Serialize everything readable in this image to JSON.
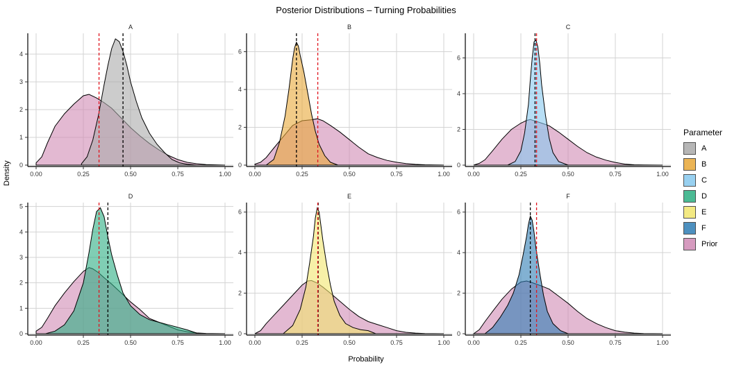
{
  "chart_data": {
    "type": "area",
    "title": "Posterior Distributions – Turning Probabilities",
    "xlabel": "Probability",
    "ylabel": "Density",
    "legend": {
      "title": "Parameter",
      "placement": "right",
      "entries": [
        {
          "name": "A",
          "color": "#aaaaaa"
        },
        {
          "name": "B",
          "color": "#e8a838"
        },
        {
          "name": "C",
          "color": "#87c8ee"
        },
        {
          "name": "D",
          "color": "#2cae82"
        },
        {
          "name": "E",
          "color": "#f2e66e"
        },
        {
          "name": "F",
          "color": "#2f7db4"
        },
        {
          "name": "Prior",
          "color": "#d08ab4"
        }
      ]
    },
    "grid": true,
    "xlim": [
      0,
      1
    ],
    "x_ticks": [
      0,
      0.25,
      0.5,
      0.75,
      1
    ],
    "x_tick_labels": [
      "0.00",
      "0.25",
      "0.50",
      "0.75",
      "1.00"
    ],
    "panels": [
      {
        "label": "A",
        "ymax": 4.7,
        "y_ticks": [
          0,
          1,
          2,
          3,
          4
        ],
        "prior_line": 0.333,
        "posterior_line": 0.46,
        "prior": {
          "x": [
            0.0,
            0.03,
            0.06,
            0.1,
            0.15,
            0.2,
            0.25,
            0.28,
            0.32,
            0.36,
            0.4,
            0.45,
            0.5,
            0.55,
            0.6,
            0.65,
            0.7,
            0.75,
            0.8,
            0.85,
            0.9,
            0.95,
            1.0
          ],
          "y": [
            0.08,
            0.3,
            0.8,
            1.4,
            1.85,
            2.2,
            2.5,
            2.55,
            2.42,
            2.25,
            2.05,
            1.7,
            1.35,
            1.05,
            0.78,
            0.55,
            0.35,
            0.2,
            0.1,
            0.05,
            0.02,
            0.01,
            0.0
          ]
        },
        "posterior": {
          "x": [
            0.24,
            0.27,
            0.3,
            0.33,
            0.36,
            0.38,
            0.4,
            0.42,
            0.44,
            0.46,
            0.48,
            0.5,
            0.53,
            0.56,
            0.6,
            0.64,
            0.68,
            0.72,
            0.76,
            0.8,
            0.85
          ],
          "y": [
            0.05,
            0.3,
            0.9,
            1.8,
            2.9,
            3.6,
            4.2,
            4.55,
            4.45,
            4.1,
            3.6,
            3.0,
            2.3,
            1.7,
            1.15,
            0.75,
            0.45,
            0.2,
            0.08,
            0.03,
            0.0
          ]
        }
      },
      {
        "label": "B",
        "ymax": 6.9,
        "y_ticks": [
          0,
          2,
          4,
          6
        ],
        "prior_line": 0.333,
        "posterior_line": 0.22,
        "prior": {
          "x": [
            0.0,
            0.03,
            0.06,
            0.1,
            0.15,
            0.2,
            0.25,
            0.3,
            0.33,
            0.36,
            0.4,
            0.45,
            0.5,
            0.55,
            0.6,
            0.65,
            0.7,
            0.75,
            0.8,
            0.85,
            0.9,
            0.95,
            1.0
          ],
          "y": [
            0.05,
            0.15,
            0.4,
            0.9,
            1.5,
            2.1,
            2.35,
            2.4,
            2.45,
            2.35,
            2.1,
            1.75,
            1.35,
            0.95,
            0.6,
            0.4,
            0.25,
            0.15,
            0.08,
            0.04,
            0.02,
            0.01,
            0.0
          ]
        },
        "posterior": {
          "x": [
            0.06,
            0.1,
            0.13,
            0.16,
            0.18,
            0.2,
            0.21,
            0.22,
            0.23,
            0.24,
            0.26,
            0.28,
            0.3,
            0.32,
            0.34,
            0.37,
            0.4,
            0.44
          ],
          "y": [
            0.0,
            0.3,
            1.2,
            2.6,
            4.0,
            5.6,
            6.2,
            6.5,
            6.3,
            5.8,
            4.9,
            3.8,
            2.7,
            1.8,
            1.1,
            0.5,
            0.15,
            0.0
          ]
        }
      },
      {
        "label": "C",
        "ymax": 7.3,
        "y_ticks": [
          0,
          2,
          4,
          6
        ],
        "prior_line": 0.333,
        "posterior_line": 0.325,
        "prior": {
          "x": [
            0.0,
            0.03,
            0.06,
            0.1,
            0.15,
            0.2,
            0.25,
            0.28,
            0.3,
            0.33,
            0.36,
            0.4,
            0.45,
            0.5,
            0.55,
            0.6,
            0.65,
            0.7,
            0.75,
            0.8,
            0.85,
            0.9,
            1.0
          ],
          "y": [
            0.0,
            0.1,
            0.3,
            0.8,
            1.45,
            2.0,
            2.35,
            2.5,
            2.55,
            2.45,
            2.35,
            2.2,
            1.85,
            1.45,
            1.05,
            0.7,
            0.45,
            0.28,
            0.15,
            0.06,
            0.02,
            0.01,
            0.0
          ]
        },
        "posterior": {
          "x": [
            0.18,
            0.22,
            0.25,
            0.27,
            0.29,
            0.3,
            0.31,
            0.32,
            0.33,
            0.34,
            0.35,
            0.36,
            0.38,
            0.4,
            0.42,
            0.45,
            0.5
          ],
          "y": [
            0.0,
            0.2,
            0.8,
            1.8,
            3.4,
            4.8,
            6.0,
            6.9,
            7.0,
            6.6,
            5.7,
            4.5,
            2.8,
            1.5,
            0.7,
            0.2,
            0.0
          ]
        }
      },
      {
        "label": "D",
        "ymax": 5.1,
        "y_ticks": [
          0,
          1,
          2,
          3,
          4,
          5
        ],
        "prior_line": 0.333,
        "posterior_line": 0.38,
        "prior": {
          "x": [
            0.0,
            0.03,
            0.06,
            0.1,
            0.15,
            0.2,
            0.25,
            0.28,
            0.3,
            0.33,
            0.36,
            0.4,
            0.45,
            0.5,
            0.55,
            0.6,
            0.65,
            0.7,
            0.75,
            0.8,
            0.85,
            0.9,
            1.0
          ],
          "y": [
            0.1,
            0.25,
            0.6,
            1.1,
            1.6,
            2.05,
            2.45,
            2.6,
            2.55,
            2.4,
            2.2,
            1.95,
            1.6,
            1.25,
            0.95,
            0.6,
            0.45,
            0.3,
            0.15,
            0.08,
            0.03,
            0.01,
            0.0
          ]
        },
        "posterior": {
          "x": [
            0.05,
            0.1,
            0.15,
            0.2,
            0.25,
            0.28,
            0.3,
            0.32,
            0.34,
            0.36,
            0.38,
            0.4,
            0.43,
            0.46,
            0.5,
            0.55,
            0.6,
            0.65,
            0.7,
            0.75,
            0.8,
            0.86
          ],
          "y": [
            0.0,
            0.1,
            0.35,
            0.9,
            2.0,
            3.2,
            4.1,
            4.8,
            4.95,
            4.6,
            3.8,
            3.1,
            2.3,
            1.6,
            1.1,
            0.75,
            0.55,
            0.45,
            0.35,
            0.25,
            0.15,
            0.0
          ]
        }
      },
      {
        "label": "E",
        "ymax": 6.4,
        "y_ticks": [
          0,
          2,
          4,
          6
        ],
        "prior_line": 0.333,
        "posterior_line": 0.335,
        "prior": {
          "x": [
            0.0,
            0.03,
            0.06,
            0.1,
            0.15,
            0.2,
            0.25,
            0.28,
            0.3,
            0.33,
            0.36,
            0.4,
            0.45,
            0.5,
            0.55,
            0.6,
            0.65,
            0.7,
            0.75,
            0.8,
            0.85,
            0.9,
            1.0
          ],
          "y": [
            0.0,
            0.15,
            0.5,
            0.9,
            1.4,
            1.9,
            2.4,
            2.6,
            2.62,
            2.5,
            2.3,
            2.0,
            1.6,
            1.2,
            0.85,
            0.6,
            0.45,
            0.3,
            0.15,
            0.07,
            0.03,
            0.01,
            0.0
          ]
        },
        "posterior": {
          "x": [
            0.15,
            0.2,
            0.24,
            0.27,
            0.29,
            0.31,
            0.32,
            0.33,
            0.34,
            0.35,
            0.36,
            0.38,
            0.4,
            0.42,
            0.45,
            0.48,
            0.52,
            0.56,
            0.6,
            0.64
          ],
          "y": [
            0.0,
            0.4,
            1.2,
            2.3,
            3.5,
            4.8,
            5.7,
            6.2,
            6.0,
            5.3,
            4.6,
            3.4,
            2.4,
            1.6,
            0.9,
            0.5,
            0.3,
            0.2,
            0.15,
            0.0
          ]
        }
      },
      {
        "label": "F",
        "ymax": 6.4,
        "y_ticks": [
          0,
          2,
          4,
          6
        ],
        "prior_line": 0.333,
        "posterior_line": 0.3,
        "prior": {
          "x": [
            0.0,
            0.03,
            0.06,
            0.1,
            0.15,
            0.2,
            0.25,
            0.28,
            0.3,
            0.33,
            0.36,
            0.4,
            0.45,
            0.5,
            0.55,
            0.6,
            0.65,
            0.7,
            0.75,
            0.8,
            0.85,
            0.9,
            1.0
          ],
          "y": [
            0.0,
            0.2,
            0.6,
            1.1,
            1.7,
            2.2,
            2.55,
            2.6,
            2.55,
            2.45,
            2.35,
            2.2,
            1.85,
            1.5,
            1.1,
            0.75,
            0.5,
            0.3,
            0.15,
            0.08,
            0.03,
            0.01,
            0.0
          ]
        },
        "posterior": {
          "x": [
            0.06,
            0.1,
            0.14,
            0.18,
            0.21,
            0.24,
            0.26,
            0.28,
            0.29,
            0.3,
            0.31,
            0.32,
            0.33,
            0.35,
            0.37,
            0.39,
            0.42,
            0.46,
            0.5
          ],
          "y": [
            0.0,
            0.3,
            0.8,
            1.4,
            2.0,
            2.9,
            3.8,
            4.8,
            5.4,
            5.8,
            5.6,
            5.0,
            4.2,
            3.0,
            1.9,
            1.1,
            0.5,
            0.15,
            0.0
          ]
        }
      }
    ]
  }
}
